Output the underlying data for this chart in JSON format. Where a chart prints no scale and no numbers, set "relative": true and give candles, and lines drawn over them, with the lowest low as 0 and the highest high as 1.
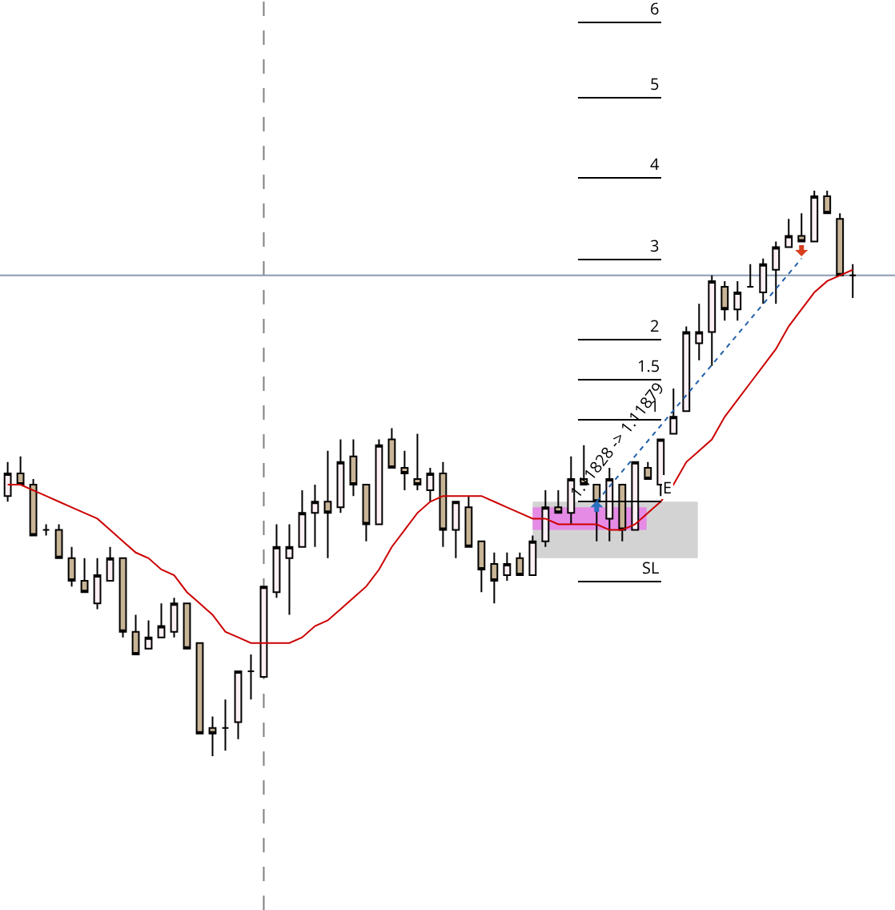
{
  "chart_data": {
    "type": "candlestick",
    "relative": true,
    "categories": [
      null,
      null,
      null,
      null,
      null,
      null,
      null,
      null,
      null,
      null,
      null,
      null,
      null,
      null,
      null,
      null,
      null,
      null,
      null,
      null,
      null,
      null,
      null,
      null,
      null,
      null,
      null,
      null,
      null,
      null,
      null,
      null,
      null,
      null,
      null,
      null,
      null,
      null,
      null,
      null,
      null,
      null,
      null,
      null,
      null,
      null,
      null,
      null,
      null,
      null,
      null,
      null,
      null,
      null,
      null,
      null,
      null,
      null,
      null,
      null,
      null,
      null,
      null,
      null,
      null,
      null,
      null
    ],
    "ohlc": [
      [
        0.46,
        0.52,
        0.45,
        0.5
      ],
      [
        0.5,
        0.53,
        0.48,
        0.48
      ],
      [
        0.48,
        0.49,
        0.39,
        0.39
      ],
      [
        0.4,
        0.41,
        0.39,
        0.4
      ],
      [
        0.4,
        0.41,
        0.35,
        0.35
      ],
      [
        0.35,
        0.37,
        0.3,
        0.31
      ],
      [
        0.31,
        0.35,
        0.29,
        0.29
      ],
      [
        0.27,
        0.35,
        0.26,
        0.32
      ],
      [
        0.31,
        0.37,
        0.31,
        0.35
      ],
      [
        0.35,
        0.35,
        0.21,
        0.22
      ],
      [
        0.22,
        0.25,
        0.18,
        0.18
      ],
      [
        0.19,
        0.24,
        0.19,
        0.21
      ],
      [
        0.21,
        0.27,
        0.21,
        0.23
      ],
      [
        0.22,
        0.28,
        0.21,
        0.27
      ],
      [
        0.27,
        0.27,
        0.19,
        0.19
      ],
      [
        0.2,
        0.2,
        0.04,
        0.04
      ],
      [
        0.05,
        0.07,
        0,
        0.04
      ],
      [
        0.05,
        0.1,
        0.01,
        0.05
      ],
      [
        0.06,
        0.15,
        0.03,
        0.15
      ],
      [
        0.15,
        0.18,
        0.1,
        0.15
      ],
      [
        0.14,
        0.3,
        0.14,
        0.3
      ],
      [
        0.29,
        0.41,
        0.28,
        0.37
      ],
      [
        0.35,
        0.41,
        0.25,
        0.37
      ],
      [
        0.37,
        0.47,
        0.37,
        0.43
      ],
      [
        0.43,
        0.48,
        0.37,
        0.45
      ],
      [
        0.45,
        0.54,
        0.35,
        0.43
      ],
      [
        0.44,
        0.56,
        0.43,
        0.52
      ],
      [
        0.53,
        0.56,
        0.46,
        0.48
      ],
      [
        0.48,
        0.48,
        0.38,
        0.41
      ],
      [
        0.41,
        0.56,
        0.41,
        0.55
      ],
      [
        0.56,
        0.58,
        0.51,
        0.51
      ],
      [
        0.51,
        0.54,
        0.47,
        0.5
      ],
      [
        0.49,
        0.57,
        0.47,
        0.48
      ],
      [
        0.47,
        0.51,
        0.45,
        0.5
      ],
      [
        0.5,
        0.52,
        0.37,
        0.4
      ],
      [
        0.4,
        0.45,
        0.35,
        0.45
      ],
      [
        0.44,
        0.46,
        0.37,
        0.37
      ],
      [
        0.38,
        0.38,
        0.29,
        0.33
      ],
      [
        0.34,
        0.36,
        0.27,
        0.31
      ],
      [
        0.32,
        0.36,
        0.31,
        0.34
      ],
      [
        0.35,
        0.36,
        0.32,
        0.32
      ],
      [
        0.32,
        0.39,
        0.32,
        0.38
      ],
      [
        0.38,
        0.47,
        0.37,
        0.44
      ],
      [
        0.44,
        0.47,
        0.43,
        0.43
      ],
      [
        0.43,
        0.53,
        0.41,
        0.49
      ],
      [
        0.49,
        0.55,
        0.48,
        0.48
      ],
      [
        0.48,
        0.48,
        0.38,
        0.45
      ],
      [
        0.42,
        0.51,
        0.38,
        0.49
      ],
      [
        0.48,
        0.48,
        0.38,
        0.4
      ],
      [
        0.4,
        0.52,
        0.4,
        0.52
      ],
      [
        0.51,
        0.52,
        0.49,
        0.49
      ],
      [
        0.48,
        0.56,
        0.46,
        0.56
      ],
      [
        0.57,
        0.65,
        0.57,
        0.6
      ],
      [
        0.61,
        0.76,
        0.61,
        0.75
      ],
      [
        0.73,
        0.8,
        0.7,
        0.75
      ],
      [
        0.75,
        0.85,
        0.69,
        0.84
      ],
      [
        0.83,
        0.84,
        0.77,
        0.79
      ],
      [
        0.79,
        0.84,
        0.77,
        0.82
      ],
      [
        0.83,
        0.87,
        0.83,
        0.83
      ],
      [
        0.82,
        0.88,
        0.8,
        0.87
      ],
      [
        0.86,
        0.91,
        0.8,
        0.9
      ],
      [
        0.9,
        0.95,
        0.9,
        0.92
      ],
      [
        0.92,
        0.96,
        0.91,
        0.91
      ],
      [
        0.91,
        1,
        0.91,
        0.99
      ],
      [
        0.99,
        1,
        0.96,
        0.96
      ],
      [
        0.95,
        0.96,
        0.85,
        0.85
      ],
      [
        0.85,
        0.87,
        0.81,
        0.85
      ]
    ],
    "series": [
      {
        "type": "line",
        "color": "#cc0000",
        "values": [
          0.48,
          0.48,
          0.47,
          0.46,
          0.45,
          0.44,
          0.43,
          0.42,
          0.4,
          0.38,
          0.36,
          0.35,
          0.33,
          0.32,
          0.29,
          0.27,
          0.25,
          0.22,
          0.21,
          0.2,
          0.2,
          0.2,
          0.2,
          0.21,
          0.23,
          0.24,
          0.26,
          0.28,
          0.3,
          0.33,
          0.37,
          0.4,
          0.43,
          0.45,
          0.46,
          0.46,
          0.46,
          0.46,
          0.45,
          0.44,
          0.43,
          0.42,
          0.42,
          0.41,
          0.41,
          0.41,
          0.41,
          0.4,
          0.4,
          0.41,
          0.43,
          0.45,
          0.48,
          0.52,
          0.54,
          0.56,
          0.6,
          0.63,
          0.66,
          0.69,
          0.72,
          0.76,
          0.79,
          0.82,
          0.84,
          0.85,
          0.86
        ]
      }
    ],
    "ref_lines": [
      {
        "axis": "y",
        "value": 0.85,
        "color": "#8a9bb0",
        "line_style": "solid"
      }
    ],
    "bands": [
      {
        "axis": "y",
        "from": 0.35,
        "to": 0.45,
        "color": "#d3d3d3"
      },
      {
        "axis": "y",
        "from": 0.4,
        "to": 0.44,
        "color": "#e58be5"
      }
    ],
    "annotations": [
      "1.11828 -> 1.11879",
      "6",
      "5",
      "4",
      "3",
      "2",
      "1.5",
      "1",
      "E",
      "SL"
    ],
    "grid": false
  }
}
